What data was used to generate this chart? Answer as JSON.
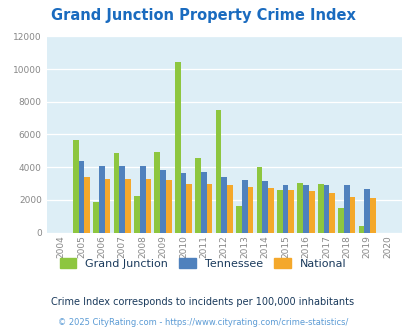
{
  "title": "Grand Junction Property Crime Index",
  "years": [
    2004,
    2005,
    2006,
    2007,
    2008,
    2009,
    2010,
    2011,
    2012,
    2013,
    2014,
    2015,
    2016,
    2017,
    2018,
    2019,
    2020
  ],
  "grand_junction": [
    0,
    5650,
    1900,
    4850,
    2250,
    4950,
    10400,
    4550,
    7500,
    1650,
    4000,
    2600,
    3050,
    2950,
    1500,
    400,
    0
  ],
  "tennessee": [
    0,
    4350,
    4100,
    4100,
    4050,
    3800,
    3650,
    3700,
    3400,
    3200,
    3150,
    2900,
    2900,
    2900,
    2900,
    2650,
    0
  ],
  "national": [
    0,
    3400,
    3300,
    3250,
    3250,
    3200,
    3000,
    2950,
    2900,
    2800,
    2700,
    2600,
    2550,
    2400,
    2200,
    2100,
    0
  ],
  "grand_junction_color": "#8dc63f",
  "tennessee_color": "#4f81bd",
  "national_color": "#f4a82b",
  "background_color": "#ddeef6",
  "ylim": [
    0,
    12000
  ],
  "yticks": [
    0,
    2000,
    4000,
    6000,
    8000,
    10000,
    12000
  ],
  "subtitle": "Crime Index corresponds to incidents per 100,000 inhabitants",
  "footer": "© 2025 CityRating.com - https://www.cityrating.com/crime-statistics/",
  "subtitle_color": "#1a3a5c",
  "footer_color": "#5b9bd5",
  "title_color": "#1a6bbf",
  "axis_label_color": "#888888"
}
